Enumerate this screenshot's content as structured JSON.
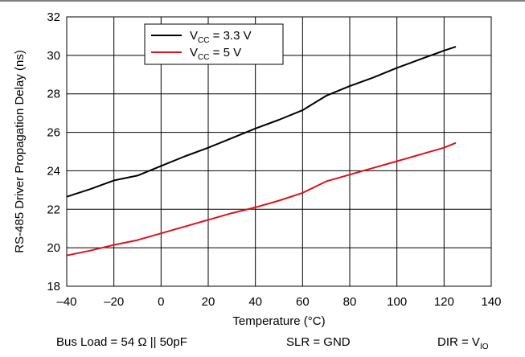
{
  "chart_data": {
    "type": "line",
    "xlabel": "Temperature (°C)",
    "ylabel": "RS-485 Driver Propagation Delay (ns)",
    "xlim": [
      -40,
      140
    ],
    "ylim": [
      18,
      32
    ],
    "xticks": [
      -40,
      -20,
      0,
      20,
      40,
      60,
      80,
      100,
      120,
      140
    ],
    "yticks": [
      18,
      20,
      22,
      24,
      26,
      28,
      30,
      32
    ],
    "grid": true,
    "legend_position": "top-center",
    "series": [
      {
        "name": "VCC = 3.3 V",
        "name_parts": {
          "base": "V",
          "sub": "CC",
          "rest": " = 3.3 V"
        },
        "color": "#000000",
        "x": [
          -40,
          -30,
          -20,
          -10,
          0,
          10,
          20,
          30,
          40,
          50,
          60,
          70,
          80,
          90,
          100,
          110,
          120,
          125
        ],
        "y": [
          22.65,
          23.05,
          23.5,
          23.75,
          24.25,
          24.75,
          25.2,
          25.7,
          26.2,
          26.65,
          27.15,
          27.9,
          28.4,
          28.85,
          29.35,
          29.8,
          30.25,
          30.45
        ]
      },
      {
        "name": "VCC = 5 V",
        "name_parts": {
          "base": "V",
          "sub": "CC",
          "rest": " = 5 V"
        },
        "color": "#e0101a",
        "x": [
          -40,
          -30,
          -20,
          -10,
          0,
          10,
          20,
          30,
          40,
          50,
          60,
          70,
          80,
          90,
          100,
          110,
          120,
          125
        ],
        "y": [
          19.6,
          19.85,
          20.15,
          20.4,
          20.75,
          21.1,
          21.45,
          21.8,
          22.1,
          22.45,
          22.85,
          23.45,
          23.8,
          24.15,
          24.5,
          24.85,
          25.2,
          25.45
        ]
      }
    ]
  },
  "footer": {
    "load_text": "Bus Load = 54 Ω || 50pF",
    "slr_text": "SLR = GND",
    "dir_base": "DIR = V",
    "dir_sub": "IO"
  }
}
